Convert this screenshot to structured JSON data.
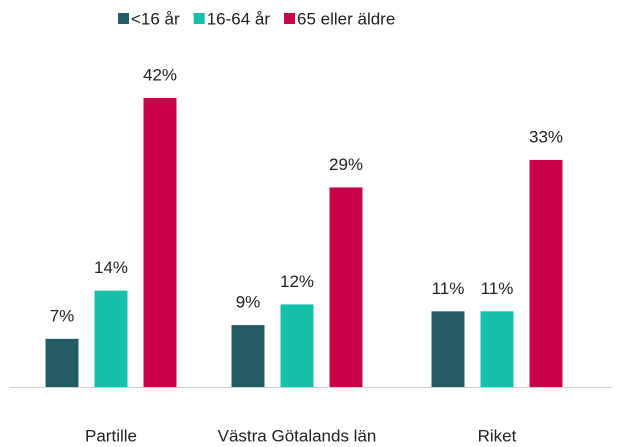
{
  "chart_data": {
    "type": "bar",
    "categories": [
      "Partille",
      "Västra Götalands län",
      "Riket"
    ],
    "series": [
      {
        "name": "<16 år",
        "color": "#235c64",
        "values": [
          7,
          9,
          11
        ],
        "value_labels": [
          "7%",
          "9%",
          "11%"
        ]
      },
      {
        "name": "16-64 år",
        "color": "#14c0a8",
        "values": [
          14,
          12,
          11
        ],
        "value_labels": [
          "14%",
          "12%",
          "11%"
        ]
      },
      {
        "name": "65 eller äldre",
        "color": "#c8004a",
        "values": [
          42,
          29,
          33
        ],
        "value_labels": [
          "42%",
          "29%",
          "33%"
        ]
      }
    ],
    "legend": "top"
  }
}
